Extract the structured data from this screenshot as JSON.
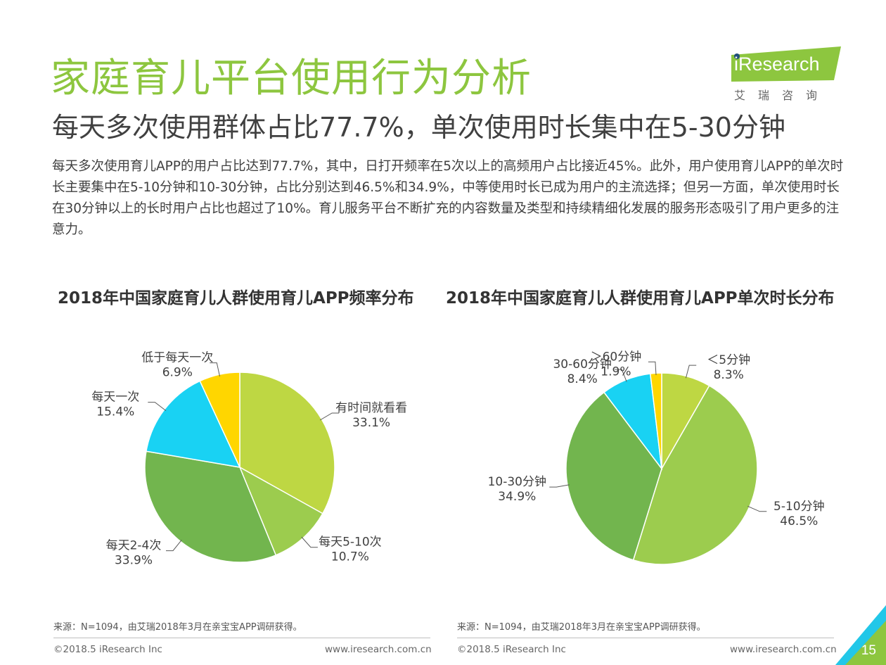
{
  "title": "家庭育儿平台使用行为分析",
  "subtitle": "每天多次使用群体占比77.7%，单次使用时长集中在5-30分钟",
  "logo": {
    "text": "iResearch",
    "cn": "艾瑞咨询"
  },
  "body_text": "每天多次使用育儿APP的用户占比达到77.7%，其中，日打开频率在5次以上的高频用户占比接近45%。此外，用户使用育儿APP的单次时长主要集中在5-10分钟和10-30分钟，占比分别达到46.5%和34.9%，中等使用时长已成为用户的主流选择；但另一方面，单次使用时长在30分钟以上的长时用户占比也超过了10%。育儿服务平台不断扩充的内容数量及类型和持续精细化发展的服务形态吸引了用户更多的注意力。",
  "colors": {
    "title_green": "#8dc63f",
    "lime": "#bed743",
    "light_green": "#9ccc4e",
    "green": "#72b54e",
    "cyan": "#19d2f3",
    "yellow": "#ffd600",
    "corner_green": "#8dc63f",
    "corner_cyan": "#22c7e8"
  },
  "chart_data": [
    {
      "type": "pie",
      "title": "2018年中国家庭育儿人群使用育儿APP频率分布",
      "slices": [
        {
          "label": "有时间就看看",
          "value": 33.1,
          "value_label": "33.1%",
          "color": "#bed743"
        },
        {
          "label": "每天5-10次",
          "value": 10.7,
          "value_label": "10.7%",
          "color": "#9ccc4e"
        },
        {
          "label": "每天2-4次",
          "value": 33.9,
          "value_label": "33.9%",
          "color": "#72b54e"
        },
        {
          "label": "每天一次",
          "value": 15.4,
          "value_label": "15.4%",
          "color": "#19d2f3"
        },
        {
          "label": "低于每天一次",
          "value": 6.9,
          "value_label": "6.9%",
          "color": "#ffd600"
        }
      ],
      "start": "12 o'clock",
      "direction": "clockwise",
      "legend": "none",
      "source": "来源：N=1094，由艾瑞2018年3月在亲宝宝APP调研获得。",
      "copyright": "©2018.5 iResearch Inc",
      "website": "www.iresearch.com.cn"
    },
    {
      "type": "pie",
      "title": "2018年中国家庭育儿人群使用育儿APP单次时长分布",
      "slices": [
        {
          "label": "＜5分钟",
          "value": 8.3,
          "value_label": "8.3%",
          "color": "#bed743"
        },
        {
          "label": "5-10分钟",
          "value": 46.5,
          "value_label": "46.5%",
          "color": "#9ccc4e"
        },
        {
          "label": "10-30分钟",
          "value": 34.9,
          "value_label": "34.9%",
          "color": "#72b54e"
        },
        {
          "label": "30-60分钟",
          "value": 8.4,
          "value_label": "8.4%",
          "color": "#19d2f3"
        },
        {
          "label": "＞60分钟",
          "value": 1.9,
          "value_label": "1.9%",
          "color": "#ffd600"
        }
      ],
      "start": "12 o'clock",
      "direction": "clockwise",
      "legend": "none",
      "source": "来源：N=1094，由艾瑞2018年3月在亲宝宝APP调研获得。",
      "copyright": "©2018.5 iResearch Inc",
      "website": "www.iresearch.com.cn"
    }
  ],
  "page_number": "15"
}
